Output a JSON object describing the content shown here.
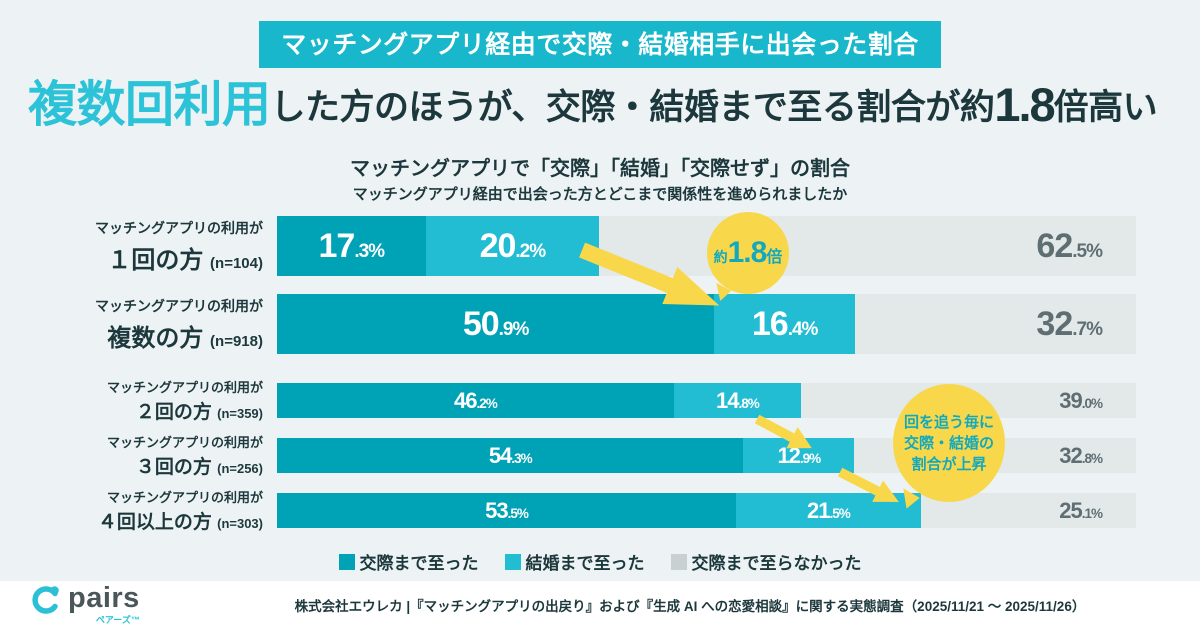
{
  "banner": {
    "text": "マッチングアプリ経由で交際・結婚相手に出会った割合"
  },
  "headline": {
    "accent": "複数回利用",
    "rest1": "した方のほうが、交際・結婚まで至る割合が約",
    "number": "1.8",
    "rest2": "倍高い"
  },
  "subtitle": "マッチングアプリで「交際」「結婚」「交際せず」の割合",
  "question": "マッチングアプリ経由で出会った方とどこまで関係性を進められましたか",
  "chart_data": {
    "type": "bar",
    "subtype": "horizontal-stacked-percent",
    "title": "マッチングアプリで「交際」「結婚」「交際せず」の割合",
    "xlabel": "",
    "ylabel": "",
    "xlim": [
      0,
      100
    ],
    "unit": "%",
    "grid": false,
    "legend_position": "bottom",
    "series_names": [
      "交際まで至った",
      "結婚まで至った",
      "交際まで至らなかった"
    ],
    "rows": [
      {
        "label_top": "マッチングアプリの利用が",
        "label_main": "１回の方",
        "n": "(n=104)",
        "size": "large",
        "values": [
          17.3,
          20.2,
          62.5
        ]
      },
      {
        "label_top": "マッチングアプリの利用が",
        "label_main": "複数の方",
        "n": "(n=918)",
        "size": "large",
        "values": [
          50.9,
          16.4,
          32.7
        ]
      },
      {
        "label_top": "マッチングアプリの利用が",
        "label_main": "２回の方",
        "n": "(n=359)",
        "size": "small",
        "values": [
          46.2,
          14.8,
          39.0
        ]
      },
      {
        "label_top": "マッチングアプリの利用が",
        "label_main": "３回の方",
        "n": "(n=256)",
        "size": "small",
        "values": [
          54.3,
          12.9,
          32.8
        ]
      },
      {
        "label_top": "マッチングアプリの利用が",
        "label_main": "４回以上の方",
        "n": "(n=303)",
        "size": "small",
        "values": [
          53.5,
          21.5,
          25.1
        ]
      }
    ]
  },
  "annotations": {
    "ratio": {
      "prefix": "約",
      "number": "1.8",
      "suffix": "倍"
    },
    "trend": "回を追う毎に\n交際・結婚の\n割合が上昇"
  },
  "legend": [
    {
      "label": "交際まで至った",
      "color": "#00a2b6"
    },
    {
      "label": "結婚まで至った",
      "color": "#23bdd3"
    },
    {
      "label": "交際まで至らなかった",
      "color": "#c9d0d2"
    }
  ],
  "footer": {
    "logo_text": "pairs",
    "logo_sub": "ペアーズ™",
    "source": "株式会社エウレカ |『マッチングアプリの出戻り』および『生成 AI への恋愛相談』に関する実態調査（2025/11/21 ～ 2025/11/26）"
  },
  "colors": {
    "background": "#edf3f5",
    "banner_bg": "#18b7cb",
    "accent_cyan": "#2cc2d7",
    "dark_navy": "#1d383c",
    "seg_dating": "#00a2b6",
    "seg_marriage": "#23bdd3",
    "seg_none": "#e3e8e9",
    "gray_text": "#5e6e73",
    "yellow": "#f8d84a",
    "bubble_text": "#12a9be",
    "footer_bg": "#ffffff",
    "logo_gray": "#4b565b"
  }
}
